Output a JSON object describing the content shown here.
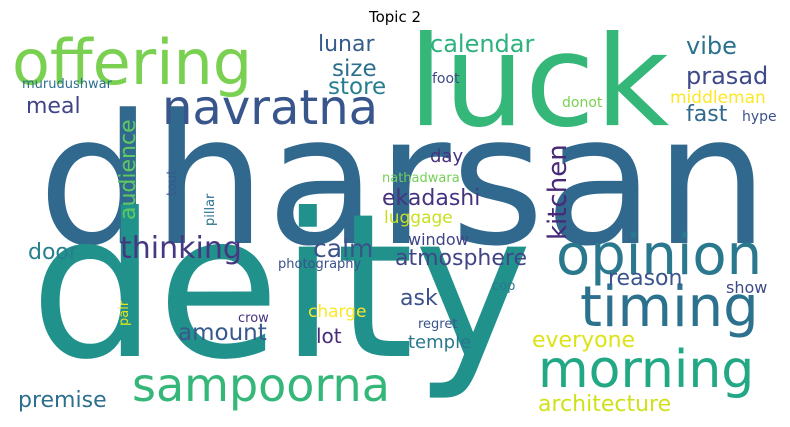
{
  "title": "Topic 2",
  "words": [
    {
      "text": "dharsan",
      "color": "#31688e"
    },
    {
      "text": "deity",
      "color": "#21918c"
    },
    {
      "text": "luck",
      "color": "#35b779"
    },
    {
      "text": "offering",
      "color": "#7ad151"
    },
    {
      "text": "navratna",
      "color": "#39568c"
    },
    {
      "text": "opinion",
      "color": "#2a788e"
    },
    {
      "text": "timing",
      "color": "#2c728e"
    },
    {
      "text": "morning",
      "color": "#22a884"
    },
    {
      "text": "sampoorna",
      "color": "#35b779"
    },
    {
      "text": "thinking",
      "color": "#453781"
    },
    {
      "text": "calm",
      "color": "#3b528b"
    },
    {
      "text": "atmosphere",
      "color": "#414487"
    },
    {
      "text": "ekadashi",
      "color": "#46327e"
    },
    {
      "text": "kitchen",
      "color": "#482878"
    },
    {
      "text": "audience",
      "color": "#5ec962"
    },
    {
      "text": "calendar",
      "color": "#2db27d"
    },
    {
      "text": "lunar",
      "color": "#365c8d"
    },
    {
      "text": "size",
      "color": "#2e6f8e"
    },
    {
      "text": "store",
      "color": "#277f8e"
    },
    {
      "text": "vibe",
      "color": "#2c728e"
    },
    {
      "text": "prasad",
      "color": "#3e4a89"
    },
    {
      "text": "fast",
      "color": "#31688e"
    },
    {
      "text": "meal",
      "color": "#414487"
    },
    {
      "text": "murudushwar",
      "color": "#2d708e"
    },
    {
      "text": "foot",
      "color": "#3e4a89"
    },
    {
      "text": "middleman",
      "color": "#fde725"
    },
    {
      "text": "donot",
      "color": "#7ad151"
    },
    {
      "text": "hype",
      "color": "#3b528b"
    },
    {
      "text": "day",
      "color": "#46337e"
    },
    {
      "text": "nathadwara",
      "color": "#73d056"
    },
    {
      "text": "luggage",
      "color": "#c8e020"
    },
    {
      "text": "window",
      "color": "#414487"
    },
    {
      "text": "tout",
      "color": "#38598c"
    },
    {
      "text": "pillar",
      "color": "#2c728e"
    },
    {
      "text": "door",
      "color": "#277f8e"
    },
    {
      "text": "photography",
      "color": "#3b528b"
    },
    {
      "text": "reason",
      "color": "#3a548c"
    },
    {
      "text": "show",
      "color": "#3e4a89"
    },
    {
      "text": "cop",
      "color": "#2a788e"
    },
    {
      "text": "ask",
      "color": "#3b528b"
    },
    {
      "text": "amount",
      "color": "#38598c"
    },
    {
      "text": "charge",
      "color": "#fde725"
    },
    {
      "text": "crow",
      "color": "#46327e"
    },
    {
      "text": "pair",
      "color": "#e5e419"
    },
    {
      "text": "lot",
      "color": "#472c7a"
    },
    {
      "text": "regret",
      "color": "#3b528b"
    },
    {
      "text": "temple",
      "color": "#2a788e"
    },
    {
      "text": "everyone",
      "color": "#dde318"
    },
    {
      "text": "premise",
      "color": "#2e6f8e"
    },
    {
      "text": "architecture",
      "color": "#d0e11c"
    }
  ]
}
